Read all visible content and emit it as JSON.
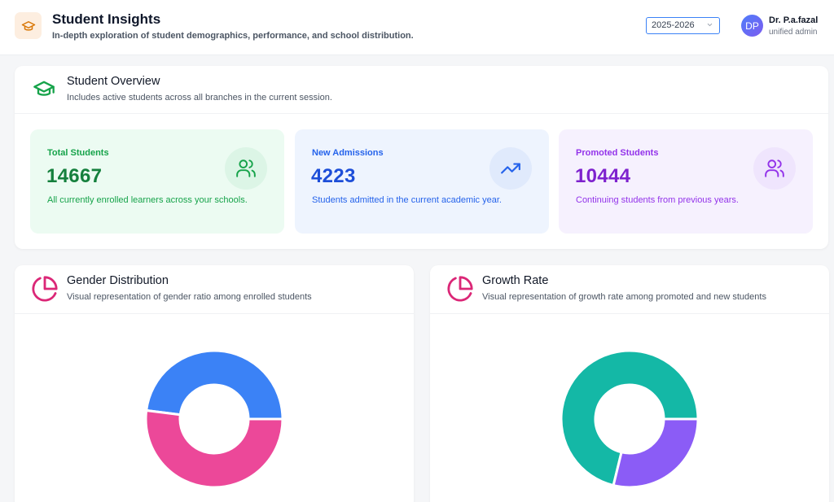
{
  "header": {
    "title": "Student Insights",
    "subtitle": "In-depth exploration of student demographics, performance, and school distribution.",
    "session_value": "2025-2026",
    "app_icon": "graduation-cap-icon"
  },
  "user": {
    "initials": "DP",
    "name": "Dr. P.a.fazal",
    "role": "unified admin"
  },
  "overview": {
    "title": "Student Overview",
    "subtitle": "Includes active students across all branches in the current session.",
    "icon": "graduation-cap-icon",
    "stats": [
      {
        "label": "Total Students",
        "value": "14667",
        "description": "All currently enrolled learners across your schools.",
        "icon": "users-icon",
        "color": "#16a34a"
      },
      {
        "label": "New Admissions",
        "value": "4223",
        "description": "Students admitted in the current academic year.",
        "icon": "trending-up-icon",
        "color": "#2563eb"
      },
      {
        "label": "Promoted Students",
        "value": "10444",
        "description": "Continuing students from previous years.",
        "icon": "users-icon",
        "color": "#9333ea"
      }
    ]
  },
  "gender_chart": {
    "title": "Gender Distribution",
    "subtitle": "Visual representation of gender ratio among enrolled students",
    "icon": "pie-chart-icon"
  },
  "growth_chart": {
    "title": "Growth Rate",
    "subtitle": "Visual representation of growth rate among promoted and new students",
    "icon": "pie-chart-icon"
  },
  "chart_data": [
    {
      "type": "pie",
      "variant": "donut",
      "categories": [
        "",
        ""
      ],
      "values": [
        48,
        52
      ],
      "colors": [
        "#3b82f6",
        "#ec4899"
      ]
    },
    {
      "type": "pie",
      "variant": "donut",
      "categories": [
        "",
        ""
      ],
      "values": [
        71.2,
        28.8
      ],
      "colors": [
        "#14b8a6",
        "#8b5cf6"
      ]
    }
  ]
}
